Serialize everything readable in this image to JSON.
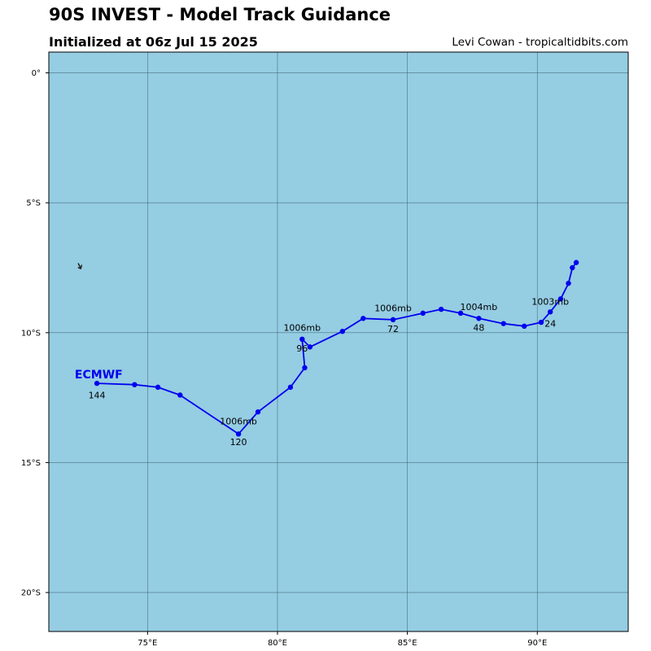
{
  "header": {
    "title": "90S INVEST - Model Track Guidance",
    "subtitle": "Initialized at 06z Jul 15 2025",
    "credit": "Levi Cowan - tropicaltidbits.com"
  },
  "colors": {
    "ocean": "#95cde3",
    "track": "#0000ee",
    "grid": "#2b4a56"
  },
  "chart_data": {
    "type": "line",
    "map_extent": {
      "lon_range": [
        71.2,
        93.5
      ],
      "lat_range": [
        -21.5,
        0.8
      ]
    },
    "x_ticks": [
      {
        "value": 75,
        "label": "75°E"
      },
      {
        "value": 80,
        "label": "80°E"
      },
      {
        "value": 85,
        "label": "85°E"
      },
      {
        "value": 90,
        "label": "90°E"
      }
    ],
    "y_ticks": [
      {
        "value": 0,
        "label": "0°"
      },
      {
        "value": -5,
        "label": "5°S"
      },
      {
        "value": -10,
        "label": "10°S"
      },
      {
        "value": -15,
        "label": "15°S"
      },
      {
        "value": -20,
        "label": "20°S"
      }
    ],
    "grid": true,
    "series": [
      {
        "name": "ECMWF",
        "points": [
          {
            "lon": 91.5,
            "lat": -7.3
          },
          {
            "lon": 91.35,
            "lat": -7.5
          },
          {
            "lon": 91.2,
            "lat": -8.1
          },
          {
            "lon": 90.9,
            "lat": -8.7
          },
          {
            "lon": 90.5,
            "lat": -9.2
          },
          {
            "lon": 90.15,
            "lat": -9.6
          },
          {
            "lon": 89.5,
            "lat": -9.75
          },
          {
            "lon": 88.7,
            "lat": -9.65
          },
          {
            "lon": 87.75,
            "lat": -9.45
          },
          {
            "lon": 87.05,
            "lat": -9.25
          },
          {
            "lon": 86.3,
            "lat": -9.1
          },
          {
            "lon": 85.6,
            "lat": -9.25
          },
          {
            "lon": 84.45,
            "lat": -9.5
          },
          {
            "lon": 83.3,
            "lat": -9.45
          },
          {
            "lon": 82.5,
            "lat": -9.95
          },
          {
            "lon": 81.25,
            "lat": -10.55
          },
          {
            "lon": 80.95,
            "lat": -10.25
          },
          {
            "lon": 81.05,
            "lat": -11.35
          },
          {
            "lon": 80.5,
            "lat": -12.1
          },
          {
            "lon": 79.25,
            "lat": -13.05
          },
          {
            "lon": 78.5,
            "lat": -13.9
          },
          {
            "lon": 76.25,
            "lat": -12.4
          },
          {
            "lon": 75.4,
            "lat": -12.1
          },
          {
            "lon": 74.5,
            "lat": -12.0
          },
          {
            "lon": 73.05,
            "lat": -11.95
          }
        ]
      }
    ],
    "annotations": [
      {
        "text": "1003mb",
        "lon": 90.5,
        "lat": -8.8
      },
      {
        "text": "24",
        "lon": 90.5,
        "lat": -9.65
      },
      {
        "text": "1004mb",
        "lon": 87.75,
        "lat": -9.0
      },
      {
        "text": "48",
        "lon": 87.75,
        "lat": -9.8
      },
      {
        "text": "1006mb",
        "lon": 84.45,
        "lat": -9.05
      },
      {
        "text": "72",
        "lon": 84.45,
        "lat": -9.85
      },
      {
        "text": "1006mb",
        "lon": 80.95,
        "lat": -9.8
      },
      {
        "text": "96",
        "lon": 80.95,
        "lat": -10.6
      },
      {
        "text": "1006mb",
        "lon": 78.5,
        "lat": -13.4
      },
      {
        "text": "120",
        "lon": 78.5,
        "lat": -14.2
      },
      {
        "text": "144",
        "lon": 73.05,
        "lat": -12.4
      }
    ],
    "model_labels": [
      {
        "text": "ECMWF",
        "lon": 72.2,
        "lat": -11.6
      }
    ],
    "storm_marker": {
      "lon": 72.4,
      "lat": -7.5
    }
  }
}
